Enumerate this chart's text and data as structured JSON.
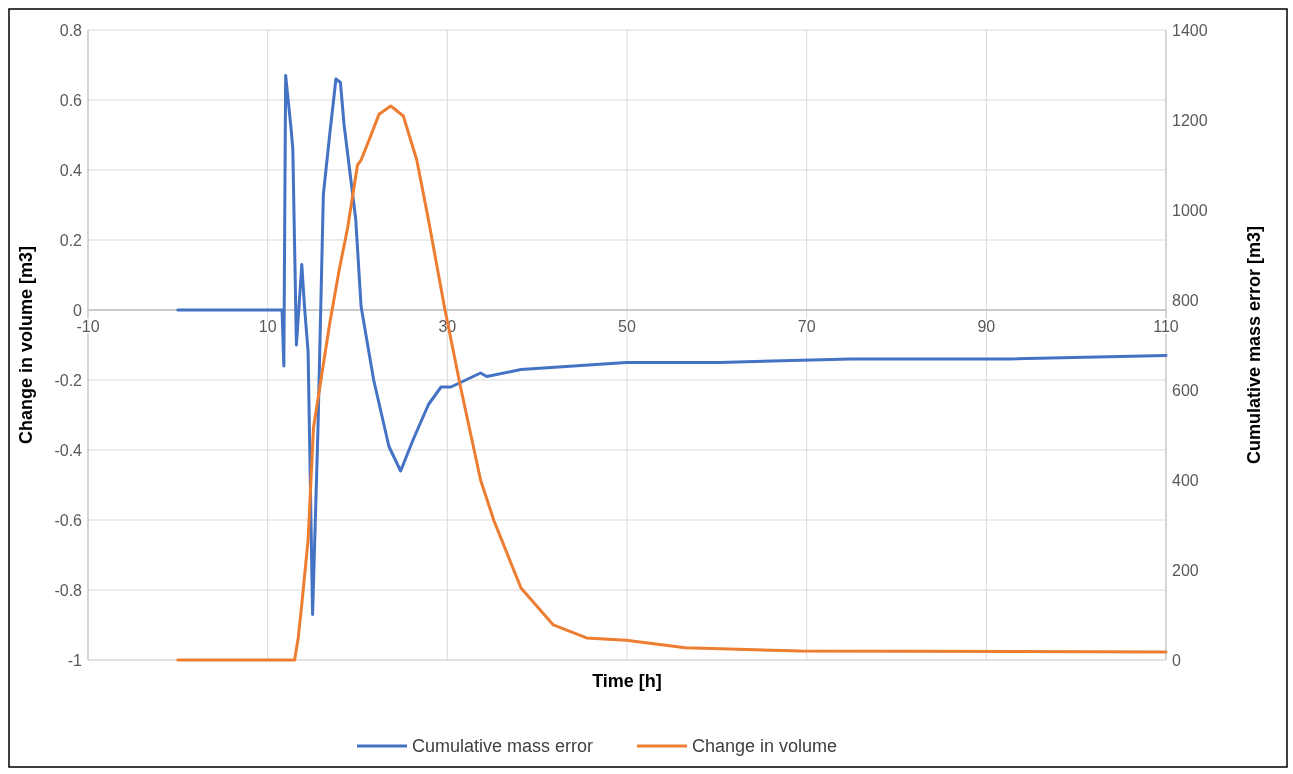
{
  "chart_data": {
    "type": "line",
    "xlabel": "Time [h]",
    "ylabel": "Change in volume [m3]",
    "y2label": "Cumulative mass error [m3]",
    "xlim": [
      -10,
      110
    ],
    "xticks": [
      -10,
      10,
      30,
      50,
      70,
      90,
      110
    ],
    "ylim": [
      -1,
      0.8
    ],
    "yticks": [
      -1,
      -0.8,
      -0.6,
      -0.4,
      -0.2,
      0,
      0.2,
      0.4,
      0.6,
      0.8
    ],
    "y2lim": [
      0,
      1400
    ],
    "y2ticks": [
      0,
      200,
      400,
      600,
      800,
      1000,
      1200,
      1400
    ],
    "grid": true,
    "legend": "bottom",
    "marker": "none",
    "line_style": "solid",
    "series": [
      {
        "name": "Cumulative mass error",
        "color": "#4472c4",
        "x": [
          0,
          11.6,
          11.8,
          12.0,
          12.6,
          12.8,
          13.2,
          13.8,
          14.1,
          14.5,
          15.0,
          15.6,
          16.2,
          16.9,
          17.6,
          18.1,
          18.5,
          19.8,
          20.4,
          21.8,
          23.5,
          24.8,
          26.2,
          27.9,
          29.3,
          30.4,
          33.7,
          34.4,
          38.2,
          49.9,
          60.3,
          74.9,
          92.6,
          110
        ],
        "values": [
          0,
          0,
          -0.16,
          0.67,
          0.52,
          0.46,
          -0.1,
          0.13,
          0.01,
          -0.12,
          -0.87,
          -0.34,
          0.33,
          0.5,
          0.66,
          0.65,
          0.53,
          0.26,
          0.01,
          -0.2,
          -0.39,
          -0.46,
          -0.37,
          -0.27,
          -0.22,
          -0.22,
          -0.18,
          -0.19,
          -0.17,
          -0.15,
          -0.15,
          -0.14,
          -0.14,
          -0.13
        ]
      },
      {
        "name": "Change in volume",
        "color": "#ed7d31",
        "axis": "y2",
        "x": [
          0,
          12.1,
          13.0,
          13.4,
          13.8,
          14.5,
          15.1,
          16.0,
          16.9,
          18.0,
          18.9,
          20.0,
          20.4,
          21.3,
          22.4,
          23.7,
          25.1,
          26.6,
          27.9,
          29.7,
          31.5,
          33.7,
          35.2,
          38.2,
          41.8,
          45.5,
          49.9,
          56.5,
          69.4,
          110
        ],
        "values": [
          0,
          0,
          0,
          49,
          124,
          267,
          516,
          631,
          747,
          871,
          960,
          1100,
          1111,
          1156,
          1213,
          1231,
          1209,
          1111,
          978,
          782,
          604,
          400,
          309,
          160,
          78,
          49,
          44,
          27,
          20,
          18
        ]
      }
    ]
  }
}
